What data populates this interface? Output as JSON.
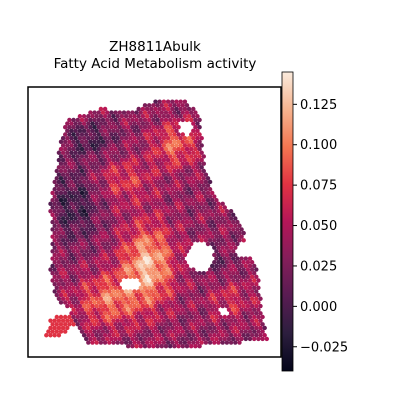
{
  "chart_data": {
    "type": "heatmap",
    "title": "ZH8811Abulk",
    "subtitle": "Fatty Acid Metabolism activity",
    "xlabel": "",
    "ylabel": "",
    "colormap": "rocket",
    "colorbar": {
      "range": [
        -0.04,
        0.145
      ],
      "ticks": [
        0.125,
        0.1,
        0.075,
        0.05,
        0.025,
        0.0,
        -0.025
      ],
      "tick_labels": [
        "0.125",
        "0.100",
        "0.075",
        "0.050",
        "0.025",
        "0.000",
        "−0.025"
      ]
    },
    "axes_ticks": "off",
    "grid": false,
    "marker": "hexagonal spots",
    "colors": {
      "low": "#03051a",
      "mid_low": "#701f57",
      "mid": "#e13342",
      "mid_high": "#f6b48f",
      "high": "#faebdd"
    }
  }
}
